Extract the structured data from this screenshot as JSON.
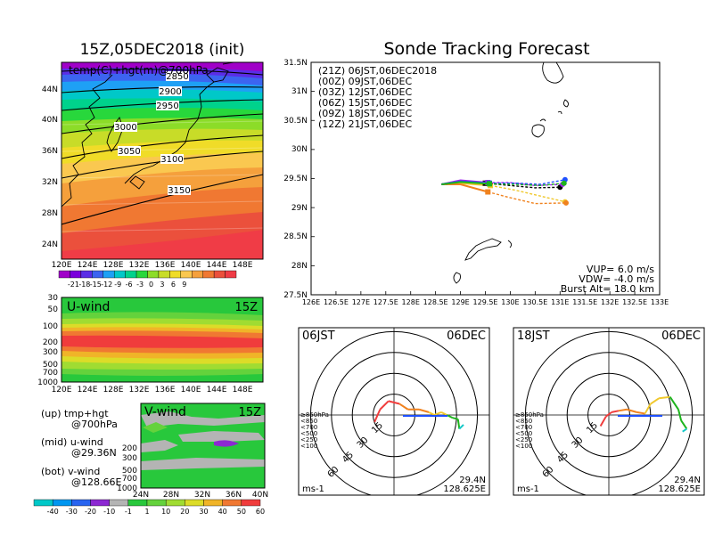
{
  "colors": {
    "temp_scale": [
      "#a000c8",
      "#7a00dc",
      "#5a2de6",
      "#3c64f0",
      "#1ea0f5",
      "#00c8c8",
      "#00d28c",
      "#28d73c",
      "#8cdc28",
      "#c8dc28",
      "#f0dc28",
      "#fac850",
      "#f5a03c",
      "#f07832",
      "#eb503c",
      "#f03c46"
    ],
    "wind_scale": [
      "#00c8c8",
      "#0096f0",
      "#2864f0",
      "#8c28d2",
      "#b4b4b4",
      "#28c83c",
      "#64d23c",
      "#a0dc32",
      "#dcdc28",
      "#f0b428",
      "#f07832",
      "#f03c3c"
    ],
    "track": {
      "21Z": "#000000",
      "00Z": "#a020f0",
      "03Z": "#1e50ff",
      "06Z": "#1eb41e",
      "09Z": "#f0c82d",
      "12Z": "#f0821e"
    },
    "hodo_layers": [
      "#f03c3c",
      "#f0821e",
      "#f0c82d",
      "#1eb41e",
      "#14c8c8",
      "#1e50ff"
    ]
  },
  "left": {
    "map_title": "15Z,05DEC2018 (init)",
    "map_subtitle": "temp(C)+hgt(m)@700hPa",
    "contour_labels": [
      "2850",
      "2900",
      "2950",
      "3000",
      "3050",
      "3100",
      "3150"
    ],
    "lat_ticks": [
      "44N",
      "40N",
      "36N",
      "32N",
      "28N",
      "24N"
    ],
    "lon_ticks": [
      "120E",
      "124E",
      "128E",
      "132E",
      "136E",
      "140E",
      "144E",
      "148E"
    ],
    "temp_cbar": [
      "-21",
      "-18",
      "-15",
      "-12",
      "-9",
      "-6",
      "-3",
      "0",
      "3",
      "6",
      "9"
    ],
    "uwind": {
      "label": "U-wind",
      "time": "15Z",
      "p_ticks": [
        "30",
        "50",
        "100",
        "200",
        "300",
        "500",
        "700",
        "1000"
      ],
      "lon_ticks": [
        "120E",
        "124E",
        "128E",
        "132E",
        "136E",
        "140E",
        "144E",
        "148E"
      ]
    },
    "vwind": {
      "label": "V-wind",
      "time": "15Z",
      "p_ticks": [
        "200",
        "300",
        "500",
        "700",
        "1000"
      ],
      "lat_ticks": [
        "24N",
        "28N",
        "32N",
        "36N",
        "40N"
      ]
    },
    "wind_cbar": [
      "-40",
      "-30",
      "-20",
      "-10",
      "-1",
      "1",
      "10",
      "20",
      "30",
      "40",
      "50",
      "60"
    ],
    "legend": {
      "up": "(up) tmp+hgt",
      "up2": "@700hPa",
      "mid": "(mid) u-wind",
      "mid2": "@29.36N",
      "bot": "(bot) v-wind",
      "bot2": "@128.66E"
    }
  },
  "tracking": {
    "title": "Sonde Tracking Forecast",
    "lat_ticks": [
      "31.5N",
      "31N",
      "30.5N",
      "30N",
      "29.5N",
      "29N",
      "28.5N",
      "28N",
      "27.5N"
    ],
    "lon_ticks": [
      "126E",
      "126.5E",
      "127E",
      "127.5E",
      "128E",
      "128.5E",
      "129E",
      "129.5E",
      "130E",
      "130.5E",
      "131E",
      "131.5E",
      "132E",
      "132.5E",
      "133E"
    ],
    "legend": [
      {
        "key": "21Z",
        "text": "(21Z)  06JST,06DEC2018"
      },
      {
        "key": "00Z",
        "text": "(00Z)  09JST,06DEC"
      },
      {
        "key": "03Z",
        "text": "(03Z)  12JST,06DEC"
      },
      {
        "key": "06Z",
        "text": "(06Z)  15JST,06DEC"
      },
      {
        "key": "09Z",
        "text": "(09Z)  18JST,06DEC"
      },
      {
        "key": "12Z",
        "text": "(12Z)  21JST,06DEC"
      }
    ],
    "params": [
      "VUP=  6.0 m/s",
      "VDW= -4.0 m/s",
      "Burst Alt= 18.0 km"
    ]
  },
  "chart_data": [
    {
      "type": "line",
      "title": "Sonde Tracking Forecast",
      "xlim": [
        126,
        133
      ],
      "ylim": [
        27.5,
        31.5
      ],
      "launch": {
        "x": 128.625,
        "y": 29.4
      },
      "series": [
        {
          "name": "(21Z)  06JST,06DEC2018",
          "key": "21Z",
          "ascent": [
            [
              128.62,
              29.4
            ],
            [
              129.0,
              29.45
            ],
            [
              129.5,
              29.42
            ]
          ],
          "descent": [
            [
              129.5,
              29.42
            ],
            [
              130.0,
              29.38
            ],
            [
              130.5,
              29.34
            ],
            [
              131.0,
              29.35
            ]
          ],
          "end": [
            131.0,
            29.35
          ]
        },
        {
          "name": "(00Z)  09JST,06DEC",
          "key": "00Z",
          "ascent": [
            [
              128.62,
              29.4
            ],
            [
              129.0,
              29.47
            ],
            [
              129.55,
              29.43
            ]
          ],
          "descent": [
            [
              129.55,
              29.43
            ],
            [
              130.0,
              29.43
            ],
            [
              130.5,
              29.38
            ],
            [
              131.05,
              29.4
            ]
          ],
          "end": [
            131.05,
            29.4
          ]
        },
        {
          "name": "(03Z)  12JST,06DEC",
          "key": "03Z",
          "ascent": [
            [
              128.62,
              29.4
            ],
            [
              129.0,
              29.45
            ],
            [
              129.58,
              29.42
            ]
          ],
          "descent": [
            [
              129.58,
              29.42
            ],
            [
              130.1,
              29.42
            ],
            [
              130.6,
              29.4
            ],
            [
              131.1,
              29.48
            ]
          ],
          "end": [
            131.1,
            29.48
          ]
        },
        {
          "name": "(06Z)  15JST,06DEC",
          "key": "06Z",
          "ascent": [
            [
              128.62,
              29.4
            ],
            [
              129.0,
              29.44
            ],
            [
              129.58,
              29.41
            ]
          ],
          "descent": [
            [
              129.58,
              29.41
            ],
            [
              130.1,
              29.4
            ],
            [
              130.6,
              29.38
            ],
            [
              131.08,
              29.42
            ]
          ],
          "end": [
            131.08,
            29.42
          ]
        },
        {
          "name": "(09Z)  18JST,06DEC",
          "key": "09Z",
          "ascent": [
            [
              128.62,
              29.4
            ],
            [
              129.0,
              29.42
            ],
            [
              129.6,
              29.38
            ]
          ],
          "descent": [
            [
              129.6,
              29.38
            ],
            [
              130.1,
              29.3
            ],
            [
              130.6,
              29.2
            ],
            [
              131.1,
              29.1
            ]
          ],
          "end": [
            131.1,
            29.1
          ]
        },
        {
          "name": "(12Z)  21JST,06DEC",
          "key": "12Z",
          "ascent": [
            [
              128.62,
              29.4
            ],
            [
              129.0,
              29.4
            ],
            [
              129.55,
              29.27
            ]
          ],
          "descent": [
            [
              129.55,
              29.27
            ],
            [
              130.0,
              29.17
            ],
            [
              130.5,
              29.07
            ],
            [
              131.12,
              29.08
            ]
          ],
          "end": [
            131.12,
            29.08
          ]
        }
      ]
    },
    {
      "type": "scatter",
      "title": "hodograph",
      "time_label": "06JST",
      "date_label": "06DEC",
      "lat_label": "29.4N",
      "lon_label": "128.625E",
      "unit": "ms-1",
      "rings": [
        15,
        30,
        45,
        60
      ],
      "layers": [
        "≥850hPa",
        "<850",
        "<700",
        "<500",
        "<250",
        "<100"
      ],
      "trace": [
        [
          -14,
          -5
        ],
        [
          -10,
          4
        ],
        [
          -4,
          10
        ],
        [
          4,
          8
        ],
        [
          10,
          4
        ],
        [
          18,
          4
        ],
        [
          25,
          2
        ],
        [
          29,
          0
        ],
        [
          34,
          2
        ],
        [
          38,
          0
        ],
        [
          42,
          -2
        ],
        [
          46,
          -3
        ],
        [
          47,
          -10
        ],
        [
          50,
          -7
        ]
      ]
    },
    {
      "type": "scatter",
      "title": "hodograph",
      "time_label": "18JST",
      "date_label": "06DEC",
      "lat_label": "29.4N",
      "lon_label": "128.625E",
      "unit": "ms-1",
      "rings": [
        15,
        30,
        45,
        60
      ],
      "layers": [
        "≥850hPa",
        "<850",
        "<700",
        "<500",
        "<250",
        "<100"
      ],
      "trace": [
        [
          -6,
          -8
        ],
        [
          -2,
          -1
        ],
        [
          2,
          2
        ],
        [
          7,
          3
        ],
        [
          13,
          4
        ],
        [
          20,
          2
        ],
        [
          26,
          1
        ],
        [
          30,
          8
        ],
        [
          36,
          12
        ],
        [
          44,
          13
        ],
        [
          50,
          4
        ],
        [
          52,
          -4
        ],
        [
          56,
          -10
        ],
        [
          53,
          -12
        ]
      ]
    }
  ]
}
